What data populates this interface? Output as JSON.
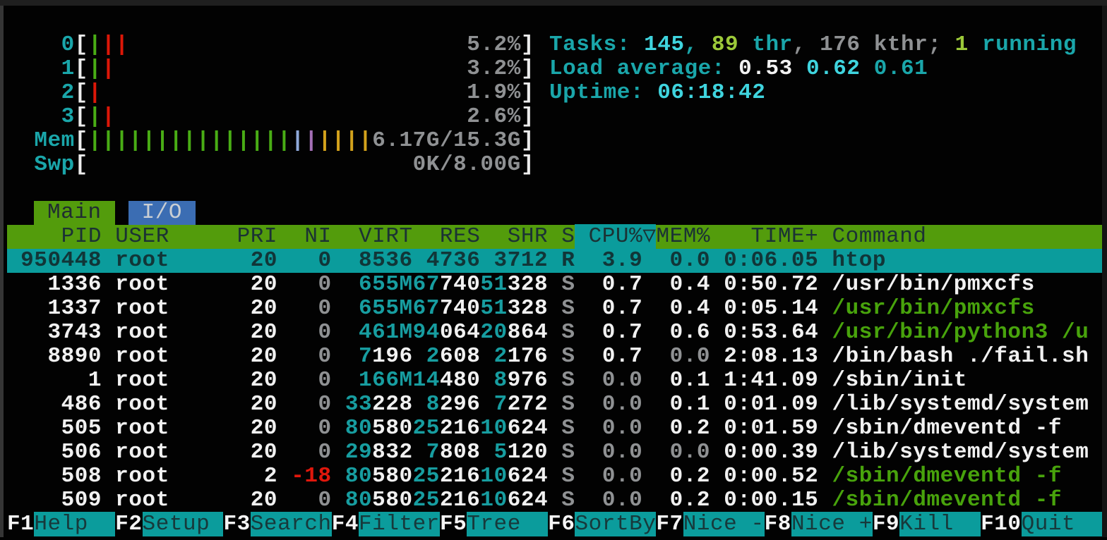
{
  "meters": {
    "cpus": [
      {
        "label": "0",
        "bars": [
          "g",
          "r",
          "r"
        ],
        "value": "5.2%"
      },
      {
        "label": "1",
        "bars": [
          "g",
          "r"
        ],
        "value": "3.2%"
      },
      {
        "label": "2",
        "bars": [
          "r"
        ],
        "value": "1.9%"
      },
      {
        "label": "3",
        "bars": [
          "g",
          "r"
        ],
        "value": "2.6%"
      }
    ],
    "mem": {
      "label": "Mem",
      "bars": [
        "g",
        "g",
        "g",
        "g",
        "g",
        "g",
        "g",
        "g",
        "g",
        "g",
        "g",
        "g",
        "g",
        "g",
        "g",
        "b",
        "m",
        "y",
        "y",
        "y",
        "y"
      ],
      "value": "6.17G/15.3G"
    },
    "swp": {
      "label": "Swp",
      "bars": [],
      "value": "0K/8.00G"
    }
  },
  "summary": {
    "tasks_segments": [
      {
        "text": "Tasks: ",
        "cls": "t"
      },
      {
        "text": "145",
        "cls": "cB"
      },
      {
        "text": ", ",
        "cls": "t"
      },
      {
        "text": "89",
        "cls": "gnB"
      },
      {
        "text": " thr",
        "cls": "t"
      },
      {
        "text": ", ",
        "cls": "gy"
      },
      {
        "text": "176",
        "cls": "gy"
      },
      {
        "text": " kthr",
        "cls": "gy"
      },
      {
        "text": "; ",
        "cls": "gy"
      },
      {
        "text": "1",
        "cls": "gnB"
      },
      {
        "text": " running",
        "cls": "t"
      }
    ],
    "load_segments": [
      {
        "text": "Load average: ",
        "cls": "t"
      },
      {
        "text": "0.53",
        "cls": "w"
      },
      {
        "text": " ",
        "cls": "t"
      },
      {
        "text": "0.62",
        "cls": "cB"
      },
      {
        "text": " ",
        "cls": "t"
      },
      {
        "text": "0.61",
        "cls": "t"
      }
    ],
    "uptime_segments": [
      {
        "text": "Uptime: ",
        "cls": "t"
      },
      {
        "text": "06:18:42",
        "cls": "cB"
      }
    ]
  },
  "tabs": [
    {
      "label": "Main",
      "active": true
    },
    {
      "label": "I/O",
      "active": false
    }
  ],
  "table": {
    "header": {
      "pid": "PID",
      "user": "USER",
      "pri": "PRI",
      "ni": "NI",
      "virt": "VIRT",
      "res": "RES",
      "shr": "SHR",
      "s": "S",
      "cpu": "CPU%",
      "mem": "MEM%",
      "time": "TIME+",
      "cmd": "Command"
    },
    "sort_column": "CPU%",
    "sort_indicator": "▽",
    "rows": [
      {
        "pid": "950448",
        "user": "root",
        "pri": "20",
        "ni": "0",
        "virt": "8536",
        "res": "4736",
        "shr": "3712",
        "s": "R",
        "cpu": "3.9",
        "mem": "0.0",
        "time": "0:06.05",
        "cmd": "htop",
        "selected": true,
        "cmd_green": false
      },
      {
        "pid": "1336",
        "user": "root",
        "pri": "20",
        "ni": "0",
        "virt": "655M",
        "res": "67740",
        "shr": "51328",
        "s": "S",
        "cpu": "0.7",
        "mem": "0.4",
        "time": "0:50.72",
        "cmd": "/usr/bin/pmxcfs",
        "selected": false,
        "cmd_green": false
      },
      {
        "pid": "1337",
        "user": "root",
        "pri": "20",
        "ni": "0",
        "virt": "655M",
        "res": "67740",
        "shr": "51328",
        "s": "S",
        "cpu": "0.7",
        "mem": "0.4",
        "time": "0:05.14",
        "cmd": "/usr/bin/pmxcfs",
        "selected": false,
        "cmd_green": true
      },
      {
        "pid": "3743",
        "user": "root",
        "pri": "20",
        "ni": "0",
        "virt": "461M",
        "res": "94064",
        "shr": "20864",
        "s": "S",
        "cpu": "0.7",
        "mem": "0.6",
        "time": "0:53.64",
        "cmd": "/usr/bin/python3 /u",
        "selected": false,
        "cmd_green": true
      },
      {
        "pid": "8890",
        "user": "root",
        "pri": "20",
        "ni": "0",
        "virt": "7196",
        "res": "2608",
        "shr": "2176",
        "s": "S",
        "cpu": "0.7",
        "mem": "0.0",
        "time": "2:08.13",
        "cmd": "/bin/bash ./fail.sh",
        "selected": false,
        "cmd_green": false
      },
      {
        "pid": "1",
        "user": "root",
        "pri": "20",
        "ni": "0",
        "virt": "166M",
        "res": "14480",
        "shr": "8976",
        "s": "S",
        "cpu": "0.0",
        "mem": "0.1",
        "time": "1:41.09",
        "cmd": "/sbin/init",
        "selected": false,
        "cmd_green": false
      },
      {
        "pid": "486",
        "user": "root",
        "pri": "20",
        "ni": "0",
        "virt": "33228",
        "res": "8296",
        "shr": "7272",
        "s": "S",
        "cpu": "0.0",
        "mem": "0.1",
        "time": "0:01.09",
        "cmd": "/lib/systemd/system",
        "selected": false,
        "cmd_green": false
      },
      {
        "pid": "505",
        "user": "root",
        "pri": "20",
        "ni": "0",
        "virt": "80580",
        "res": "25216",
        "shr": "10624",
        "s": "S",
        "cpu": "0.0",
        "mem": "0.2",
        "time": "0:01.59",
        "cmd": "/sbin/dmeventd -f",
        "selected": false,
        "cmd_green": false
      },
      {
        "pid": "506",
        "user": "root",
        "pri": "20",
        "ni": "0",
        "virt": "29832",
        "res": "7808",
        "shr": "5120",
        "s": "S",
        "cpu": "0.0",
        "mem": "0.0",
        "time": "0:00.39",
        "cmd": "/lib/systemd/system",
        "selected": false,
        "cmd_green": false
      },
      {
        "pid": "508",
        "user": "root",
        "pri": "2",
        "ni": "-18",
        "virt": "80580",
        "res": "25216",
        "shr": "10624",
        "s": "S",
        "cpu": "0.0",
        "mem": "0.2",
        "time": "0:00.52",
        "cmd": "/sbin/dmeventd -f",
        "selected": false,
        "cmd_green": true
      },
      {
        "pid": "509",
        "user": "root",
        "pri": "20",
        "ni": "0",
        "virt": "80580",
        "res": "25216",
        "shr": "10624",
        "s": "S",
        "cpu": "0.0",
        "mem": "0.2",
        "time": "0:00.15",
        "cmd": "/sbin/dmeventd -f",
        "selected": false,
        "cmd_green": true
      }
    ]
  },
  "fn_bar": [
    {
      "key": "F1",
      "label": "Help"
    },
    {
      "key": "F2",
      "label": "Setup"
    },
    {
      "key": "F3",
      "label": "Search"
    },
    {
      "key": "F4",
      "label": "Filter"
    },
    {
      "key": "F5",
      "label": "Tree"
    },
    {
      "key": "F6",
      "label": "SortBy"
    },
    {
      "key": "F7",
      "label": "Nice -"
    },
    {
      "key": "F8",
      "label": "Nice +"
    },
    {
      "key": "F9",
      "label": "Kill"
    },
    {
      "key": "F10",
      "label": "Quit"
    }
  ],
  "colors": {
    "accent_teal": "#0b9c9c",
    "header_green": "#539c0c",
    "tab_blue": "#3b6db3",
    "label_teal": "#1aa6aa",
    "bright_cyan": "#3fd4de",
    "bold_green": "#9cc939",
    "command_green": "#48a30c",
    "red": "#e0170c",
    "gray": "#8f9193",
    "bar_green": "#49ad15",
    "bar_red": "#dd1708",
    "bar_blue": "#8fa9da",
    "bar_magenta": "#a46fb6",
    "bar_yellow": "#d3a21c"
  }
}
